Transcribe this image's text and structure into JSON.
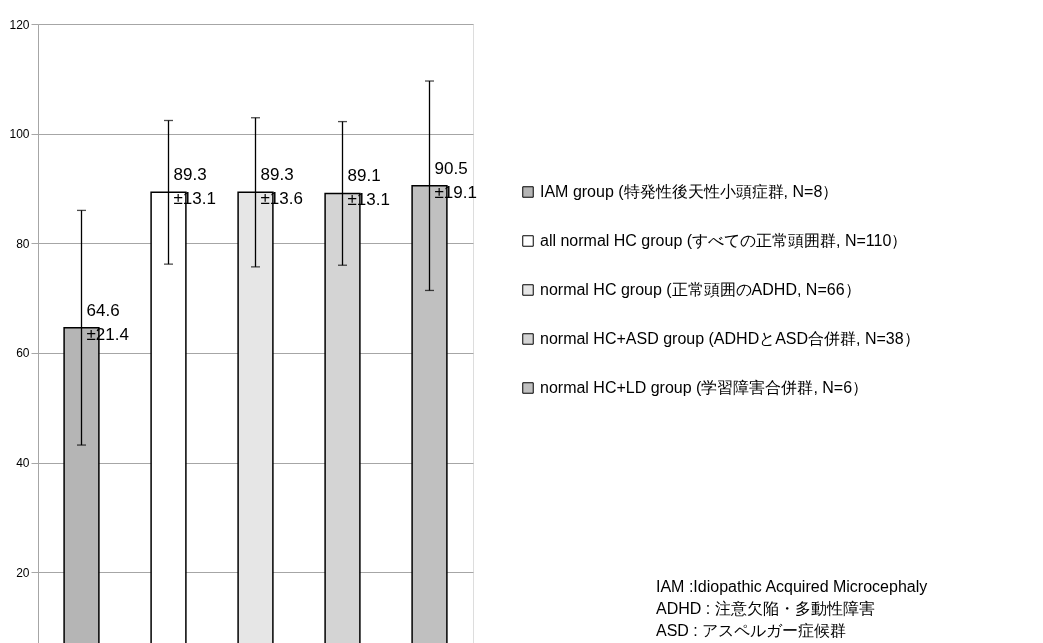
{
  "chart_data": {
    "type": "bar",
    "categories": [
      null,
      null,
      null,
      null,
      null
    ],
    "series": [
      {
        "name": "IAM group (特発性後天性小頭症群, N=8）",
        "color": "#b5b5b5",
        "values": [
          64.6,
          null,
          null,
          null,
          null
        ],
        "errors": [
          21.4,
          null,
          null,
          null,
          null
        ],
        "value_labels": [
          "64.6\n±21.4",
          null,
          null,
          null,
          null
        ]
      },
      {
        "name": "all normal HC group (すべての正常頭囲群, N=110）",
        "color": "#ffffff",
        "values": [
          null,
          89.3,
          null,
          null,
          null
        ],
        "errors": [
          null,
          13.1,
          null,
          null,
          null
        ],
        "value_labels": [
          null,
          "89.3\n±13.1",
          null,
          null,
          null
        ]
      },
      {
        "name": "normal HC group (正常頭囲のADHD, N=66）",
        "color": "#e6e6e6",
        "values": [
          null,
          null,
          89.3,
          null,
          null
        ],
        "errors": [
          null,
          null,
          13.6,
          null,
          null
        ],
        "value_labels": [
          null,
          null,
          "89.3\n±13.6",
          null,
          null
        ]
      },
      {
        "name": "normal HC+ASD group (ADHDとASD合併群, N=38）",
        "color": "#d4d4d4",
        "values": [
          null,
          null,
          null,
          89.1,
          null
        ],
        "errors": [
          null,
          null,
          null,
          13.1,
          null
        ],
        "value_labels": [
          null,
          null,
          null,
          "89.1\n±13.1",
          null
        ]
      },
      {
        "name": "normal HC+LD group (学習障害合併群, N=6）",
        "color": "#c0c0c0",
        "values": [
          null,
          null,
          null,
          null,
          90.5
        ],
        "errors": [
          null,
          null,
          null,
          null,
          19.1
        ],
        "value_labels": [
          null,
          null,
          null,
          null,
          "90.5\n±19.1"
        ]
      }
    ],
    "ylim": [
      6,
      120
    ],
    "yticks": [
      20,
      40,
      60,
      80,
      100,
      120
    ],
    "grid": "y",
    "legend": "right",
    "annotations": [
      "IAM :Idiopathic Acquired Microcephaly",
      "ADHD : 注意欠陥・多動性障害",
      "ASD : アスペルガー症候群"
    ]
  }
}
